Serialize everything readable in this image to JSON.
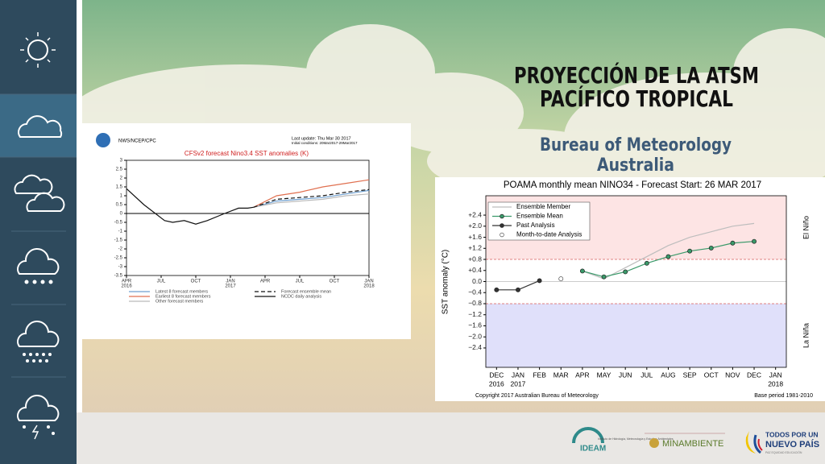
{
  "header": {
    "title_lines": [
      "PROYECCIÓN DE LA ATSM",
      "PACÍFICO TROPICAL"
    ],
    "subtitle_lines": [
      "Bureau of Meteorology",
      "Australia"
    ]
  },
  "footer": {
    "ideam": "IDEAM",
    "ideam_text": "Instituto de Hidrología, Meteorología y Estudios Ambientales",
    "minambiente": "MINAMBIENTE",
    "gov_lines": [
      "TODOS POR UN",
      "NUEVO PAÍS"
    ],
    "gov_motto": "PAZ  EQUIDAD  EDUCACIÓN"
  },
  "chart_data": [
    {
      "type": "line",
      "source": "NWS/NCEP/CPC",
      "update": "Last update: Thu Mar 30 2017",
      "conditions": "Initial conditions: 20Mar2017-29Mar2017",
      "title": "CFSv2 forecast Nino3.4 SST anomalies (K)",
      "xlim": [
        0,
        21
      ],
      "xticks": [
        {
          "value": 0,
          "label": "APR",
          "sublabel": "2016"
        },
        {
          "value": 3,
          "label": "JUL"
        },
        {
          "value": 6,
          "label": "OCT"
        },
        {
          "value": 9,
          "label": "JAN",
          "sublabel": "2017"
        },
        {
          "value": 12,
          "label": "APR"
        },
        {
          "value": 15,
          "label": "JUL"
        },
        {
          "value": 18,
          "label": "OCT"
        },
        {
          "value": 21,
          "label": "JAN",
          "sublabel": "2018"
        }
      ],
      "ylim": [
        -3.5,
        3
      ],
      "yticks": [
        3,
        2.5,
        2,
        1.5,
        1,
        0.5,
        0,
        -0.5,
        -1,
        -1.5,
        -2,
        -2.5,
        -3,
        -3.5
      ],
      "zero_line": true,
      "series": [
        {
          "name": "Latest 8 forecast members",
          "color": "#6fa0d0",
          "x": [
            11,
            13,
            15,
            17,
            19,
            21
          ],
          "values": [
            0.35,
            0.7,
            0.8,
            0.9,
            1.1,
            1.3
          ]
        },
        {
          "name": "Earliest 8 forecast members",
          "color": "#e07050",
          "x": [
            11,
            13,
            15,
            17,
            19,
            21
          ],
          "values": [
            0.35,
            1.0,
            1.2,
            1.5,
            1.7,
            1.9
          ]
        },
        {
          "name": "Other forecast members",
          "color": "#bbbbbb",
          "x": [
            11,
            13,
            15,
            17,
            19,
            21
          ],
          "values": [
            0.35,
            0.6,
            0.7,
            0.8,
            1.0,
            1.1
          ]
        },
        {
          "name": "Forecast ensemble mean",
          "color": "#111111",
          "dashed": true,
          "x": [
            11,
            13,
            15,
            17,
            19,
            21
          ],
          "values": [
            0.35,
            0.8,
            0.9,
            1.0,
            1.2,
            1.35
          ]
        },
        {
          "name": "NCDC daily analysis",
          "color": "#111111",
          "x": [
            0,
            1.5,
            3.3,
            4,
            5,
            6,
            7,
            8.5,
            9.7,
            10.5,
            11
          ],
          "values": [
            1.4,
            0.5,
            -0.4,
            -0.5,
            -0.4,
            -0.6,
            -0.4,
            0,
            0.3,
            0.3,
            0.35
          ]
        }
      ]
    },
    {
      "type": "line",
      "title": "POAMA monthly mean NINO34 - Forecast Start: 26 MAR 2017",
      "ylabel": "SST anomaly (°C)",
      "copyright": "Copyright 2017 Australian Bureau of Meteorology",
      "base_period": "Base period 1981-2010",
      "categories": [
        "DEC",
        "JAN",
        "FEB",
        "MAR",
        "APR",
        "MAY",
        "JUN",
        "JUL",
        "AUG",
        "SEP",
        "OCT",
        "NOV",
        "DEC",
        "JAN"
      ],
      "category_sublabels": [
        "2016",
        "2017",
        null,
        null,
        null,
        null,
        null,
        null,
        null,
        null,
        null,
        null,
        null,
        "2018"
      ],
      "ylim": [
        -3.1,
        3.1
      ],
      "yticks": [
        {
          "value": 2.4,
          "label": "+2.4"
        },
        {
          "value": 2,
          "label": "+2.0"
        },
        {
          "value": 1.6,
          "label": "+1.6"
        },
        {
          "value": 1.2,
          "label": "+1.2"
        },
        {
          "value": 0.8,
          "label": "+0.8"
        },
        {
          "value": 0.4,
          "label": "+0.4"
        },
        {
          "value": 0,
          "label": "0.0"
        },
        {
          "value": -0.4,
          "label": "−0.4"
        },
        {
          "value": -0.8,
          "label": "−0.8"
        },
        {
          "value": -1.2,
          "label": "−1.2"
        },
        {
          "value": -1.6,
          "label": "−1.6"
        },
        {
          "value": -2,
          "label": "−2.0"
        },
        {
          "value": -2.4,
          "label": "−2.4"
        }
      ],
      "bands": [
        {
          "label": "El Niño",
          "from": 0.8,
          "color": "#fde4e4"
        },
        {
          "label": "La Niña",
          "to": -0.8,
          "color": "#e0e0fa"
        }
      ],
      "legend": "upper left",
      "series": [
        {
          "name": "Ensemble Member",
          "color": "#bdbdbd",
          "values": [
            null,
            null,
            null,
            null,
            0.38,
            0.1,
            0.5,
            0.9,
            1.3,
            1.6,
            1.8,
            2.0,
            2.1,
            null
          ]
        },
        {
          "name": "Ensemble Mean",
          "color": "#3a9a6a",
          "marker": "filled",
          "values": [
            null,
            null,
            null,
            null,
            0.38,
            0.17,
            0.35,
            0.66,
            0.9,
            1.1,
            1.21,
            1.39,
            1.45,
            null
          ]
        },
        {
          "name": "Past Analysis",
          "color": "#333333",
          "marker": "filled",
          "values": [
            -0.3,
            -0.3,
            0.03,
            null,
            null,
            null,
            null,
            null,
            null,
            null,
            null,
            null,
            null,
            null
          ]
        },
        {
          "name": "Month-to-date Analysis",
          "color": "#555555",
          "marker": "open",
          "values": [
            null,
            null,
            null,
            0.1,
            null,
            null,
            null,
            null,
            null,
            null,
            null,
            null,
            null,
            null
          ]
        }
      ]
    }
  ]
}
